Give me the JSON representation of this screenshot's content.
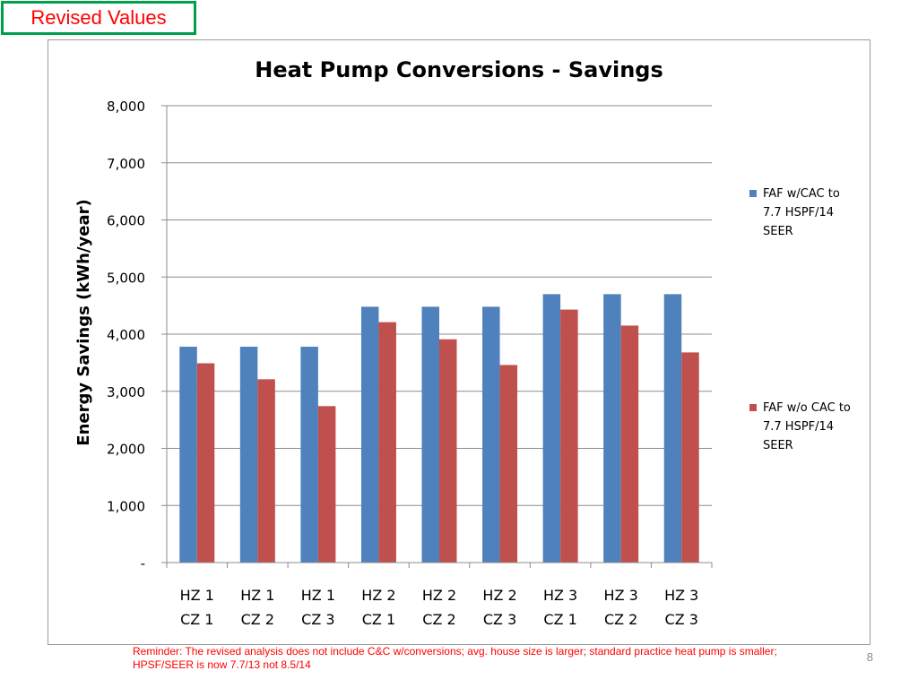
{
  "badge": "Revised Values",
  "footnote": "Reminder: The revised analysis does not include C&C w/conversions; avg. house size is larger; standard practice heat pump is smaller; HPSF/SEER is now 7.7/13 not 8.5/14",
  "page_number": "8",
  "colors": {
    "series1": "#4f81bd",
    "series2": "#c0504d",
    "badge_border": "#00a04a",
    "note_text": "#ff0000"
  },
  "chart_data": {
    "type": "bar",
    "title": "Heat Pump Conversions - Savings",
    "xlabel": "",
    "ylabel": "Energy Savings (kWh/year)",
    "ylim": [
      0,
      8000
    ],
    "yticks": [
      {
        "value": 0,
        "label": "-"
      },
      {
        "value": 1000,
        "label": "1,000"
      },
      {
        "value": 2000,
        "label": "2,000"
      },
      {
        "value": 3000,
        "label": "3,000"
      },
      {
        "value": 4000,
        "label": "4,000"
      },
      {
        "value": 5000,
        "label": "5,000"
      },
      {
        "value": 6000,
        "label": "6,000"
      },
      {
        "value": 7000,
        "label": "7,000"
      },
      {
        "value": 8000,
        "label": "8,000"
      }
    ],
    "categories": [
      [
        "HZ 1",
        "CZ 1"
      ],
      [
        "HZ 1",
        "CZ 2"
      ],
      [
        "HZ 1",
        "CZ 3"
      ],
      [
        "HZ 2",
        "CZ 1"
      ],
      [
        "HZ 2",
        "CZ 2"
      ],
      [
        "HZ 2",
        "CZ 3"
      ],
      [
        "HZ 3",
        "CZ 1"
      ],
      [
        "HZ 3",
        "CZ 2"
      ],
      [
        "HZ 3",
        "CZ 3"
      ]
    ],
    "grid": true,
    "legend_position": "right",
    "series": [
      {
        "name": "FAF w/CAC to 7.7 HSPF/14 SEER",
        "color": "#4f81bd",
        "values": [
          3780,
          3780,
          3780,
          4480,
          4480,
          4480,
          4700,
          4700,
          4700
        ]
      },
      {
        "name": "FAF w/o CAC to 7.7 HSPF/14 SEER",
        "color": "#c0504d",
        "values": [
          3490,
          3210,
          2740,
          4210,
          3910,
          3460,
          4430,
          4150,
          3680
        ]
      }
    ],
    "legend": [
      [
        "FAF w/CAC to",
        "7.7 HSPF/14",
        "SEER"
      ],
      [
        "FAF w/o CAC to",
        "7.7 HSPF/14",
        "SEER"
      ]
    ]
  }
}
